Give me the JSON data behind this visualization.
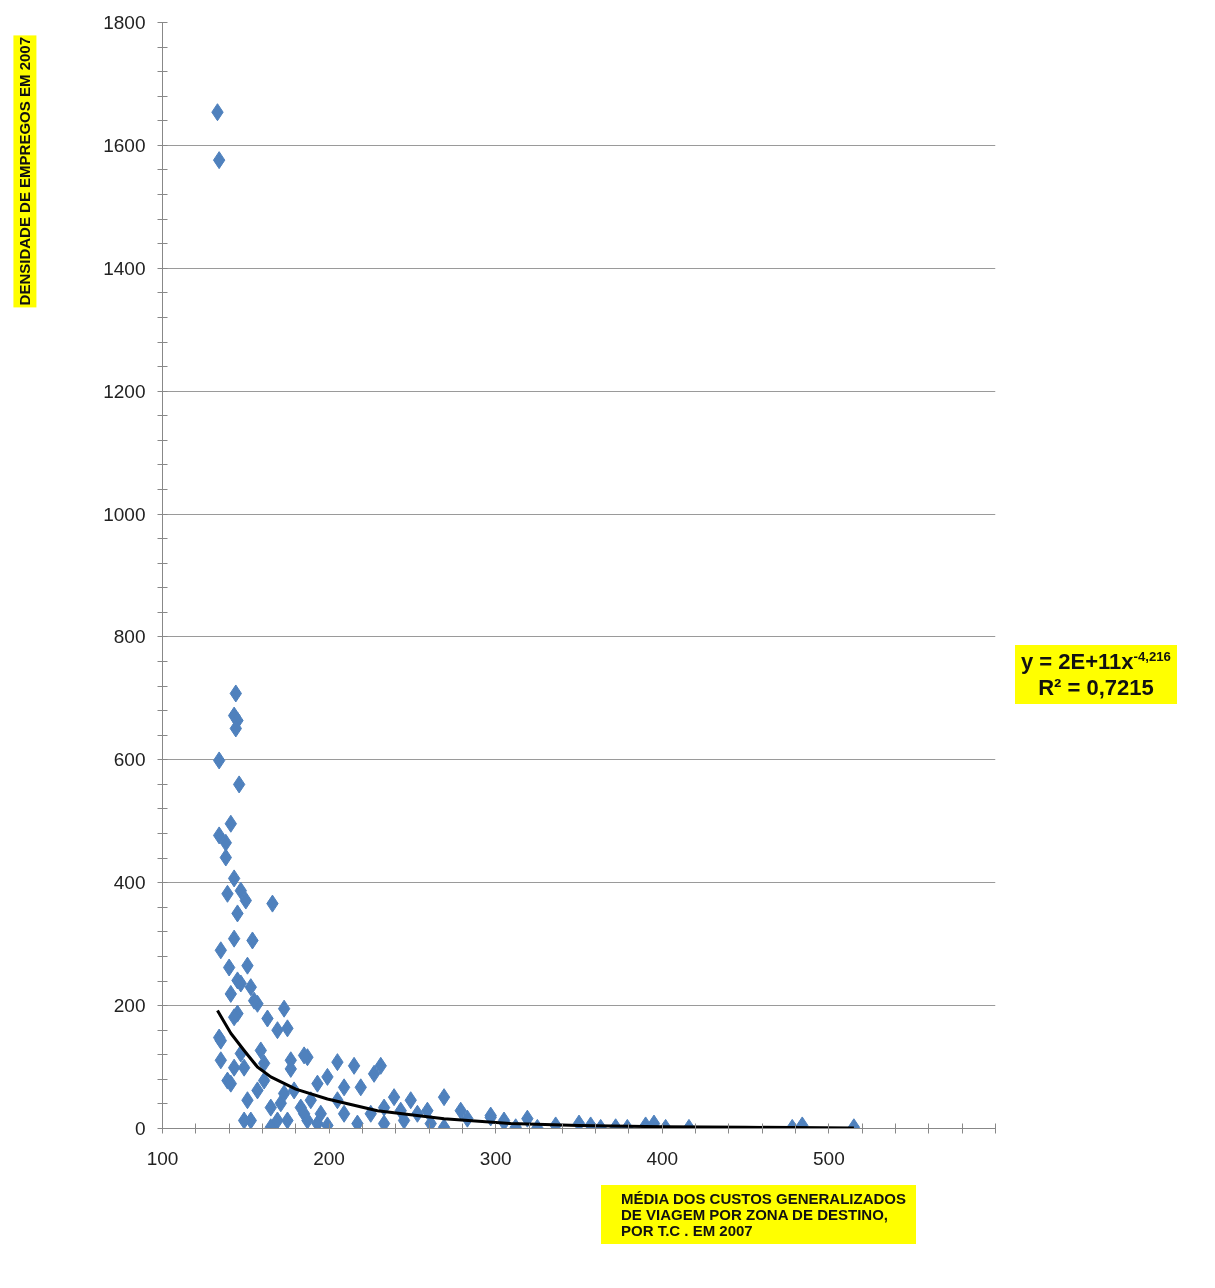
{
  "chart_data": {
    "type": "scatter",
    "xlabel": "MÉDIA DOS CUSTOS  GENERALIZADOS\nDE VIAGEM POR ZONA DE DESTINO,\nPOR T.C . EM 2007",
    "ylabel": "DENSIDADE DE EMPREGOS EM 2007",
    "annotations": [
      "y = 2E+11x$^{-4,216}$\nR² = 0,7215"
    ],
    "xlim": [
      100,
      600
    ],
    "xticks": [
      100,
      {
        "value": 120,
        "label": null
      },
      {
        "value": 140,
        "label": null
      },
      {
        "value": 160,
        "label": null
      },
      {
        "value": 180,
        "label": null
      },
      200,
      {
        "value": 220,
        "label": null
      },
      {
        "value": 240,
        "label": null
      },
      {
        "value": 260,
        "label": null
      },
      {
        "value": 280,
        "label": null
      },
      300,
      {
        "value": 320,
        "label": null
      },
      {
        "value": 340,
        "label": null
      },
      {
        "value": 360,
        "label": null
      },
      {
        "value": 380,
        "label": null
      },
      400,
      {
        "value": 420,
        "label": null
      },
      {
        "value": 440,
        "label": null
      },
      {
        "value": 460,
        "label": null
      },
      {
        "value": 480,
        "label": null
      },
      500,
      {
        "value": 520,
        "label": null
      },
      {
        "value": 540,
        "label": null
      },
      {
        "value": 560,
        "label": null
      },
      {
        "value": 580,
        "label": null
      },
      {
        "value": 600,
        "label": null
      }
    ],
    "ylim": [
      0,
      1800
    ],
    "yticks": [
      0,
      {
        "value": 40,
        "label": null
      },
      {
        "value": 80,
        "label": null
      },
      {
        "value": 120,
        "label": null
      },
      {
        "value": 160,
        "label": null
      },
      200,
      {
        "value": 240,
        "label": null
      },
      {
        "value": 280,
        "label": null
      },
      {
        "value": 320,
        "label": null
      },
      {
        "value": 360,
        "label": null
      },
      400,
      {
        "value": 440,
        "label": null
      },
      {
        "value": 480,
        "label": null
      },
      {
        "value": 520,
        "label": null
      },
      {
        "value": 560,
        "label": null
      },
      600,
      {
        "value": 640,
        "label": null
      },
      {
        "value": 680,
        "label": null
      },
      {
        "value": 720,
        "label": null
      },
      {
        "value": 760,
        "label": null
      },
      800,
      {
        "value": 840,
        "label": null
      },
      {
        "value": 880,
        "label": null
      },
      {
        "value": 920,
        "label": null
      },
      {
        "value": 960,
        "label": null
      },
      1000,
      {
        "value": 1040,
        "label": null
      },
      {
        "value": 1080,
        "label": null
      },
      {
        "value": 1120,
        "label": null
      },
      {
        "value": 1160,
        "label": null
      },
      1200,
      {
        "value": 1240,
        "label": null
      },
      {
        "value": 1280,
        "label": null
      },
      {
        "value": 1320,
        "label": null
      },
      {
        "value": 1360,
        "label": null
      },
      1400,
      {
        "value": 1440,
        "label": null
      },
      {
        "value": 1480,
        "label": null
      },
      {
        "value": 1520,
        "label": null
      },
      {
        "value": 1560,
        "label": null
      },
      1600,
      {
        "value": 1640,
        "label": null
      },
      {
        "value": 1680,
        "label": null
      },
      {
        "value": 1720,
        "label": null
      },
      {
        "value": 1760,
        "label": null
      },
      1800
    ],
    "grid": "y",
    "series": [
      {
        "type": "scatter",
        "color": "#4f81bd",
        "marker": "diamond",
        "x": [
          133,
          134,
          144,
          143,
          145,
          144,
          134,
          146,
          141,
          134,
          138,
          138,
          143,
          139,
          147,
          166,
          145,
          150,
          143,
          154,
          135,
          140,
          151,
          145,
          141,
          153,
          173,
          163,
          134,
          135,
          145,
          157,
          169,
          139,
          151,
          153,
          165,
          147,
          161,
          177,
          187,
          193,
          143,
          157,
          171,
          185,
          175,
          193,
          175,
          185,
          205,
          215,
          231,
          227,
          199,
          177,
          269,
          283,
          297,
          305,
          249,
          239,
          219,
          209,
          205,
          189,
          179,
          165,
          141,
          135,
          149,
          169,
          187,
          199,
          217,
          233,
          245,
          261,
          269,
          149,
          159,
          161,
          173,
          183,
          195,
          209,
          225,
          243,
          259,
          279,
          143,
          155,
          147,
          233,
          253,
          297,
          305,
          312,
          319,
          325,
          336,
          350,
          357,
          363,
          372,
          379,
          390,
          395,
          402,
          416,
          478,
          484,
          515
        ],
        "values": [
          1654,
          1576,
          708,
          672,
          664,
          651,
          599,
          560,
          496,
          477,
          465,
          441,
          407,
          382,
          387,
          366,
          350,
          371,
          309,
          306,
          290,
          262,
          265,
          241,
          219,
          230,
          195,
          179,
          148,
          111,
          187,
          203,
          160,
          78,
          46,
          13,
          2,
          122,
          106,
          111,
          116,
          73,
          99,
          62,
          41,
          24,
          13,
          8,
          163,
          119,
          108,
          102,
          102,
          89,
          84,
          97,
          51,
          16,
          18,
          13,
          46,
          51,
          67,
          67,
          46,
          46,
          62,
          34,
          73,
          143,
          13,
          13,
          13,
          5,
          8,
          8,
          13,
          8,
          2,
          99,
          127,
          78,
          57,
          34,
          24,
          24,
          24,
          29,
          29,
          29,
          181,
          208,
          236,
          34,
          24,
          21,
          10,
          2,
          16,
          1,
          5,
          8,
          5,
          1,
          2,
          1,
          5,
          8,
          1,
          1,
          1,
          5,
          2
        ]
      },
      {
        "type": "line",
        "color": "#000000",
        "x": [
          133,
          141,
          149,
          157,
          165,
          180,
          199,
          229,
          269,
          309,
          350,
          400,
          450,
          515
        ],
        "values": [
          192,
          155,
          127,
          100,
          84,
          64,
          48,
          29,
          16,
          8,
          5,
          3,
          2,
          1
        ]
      }
    ]
  }
}
